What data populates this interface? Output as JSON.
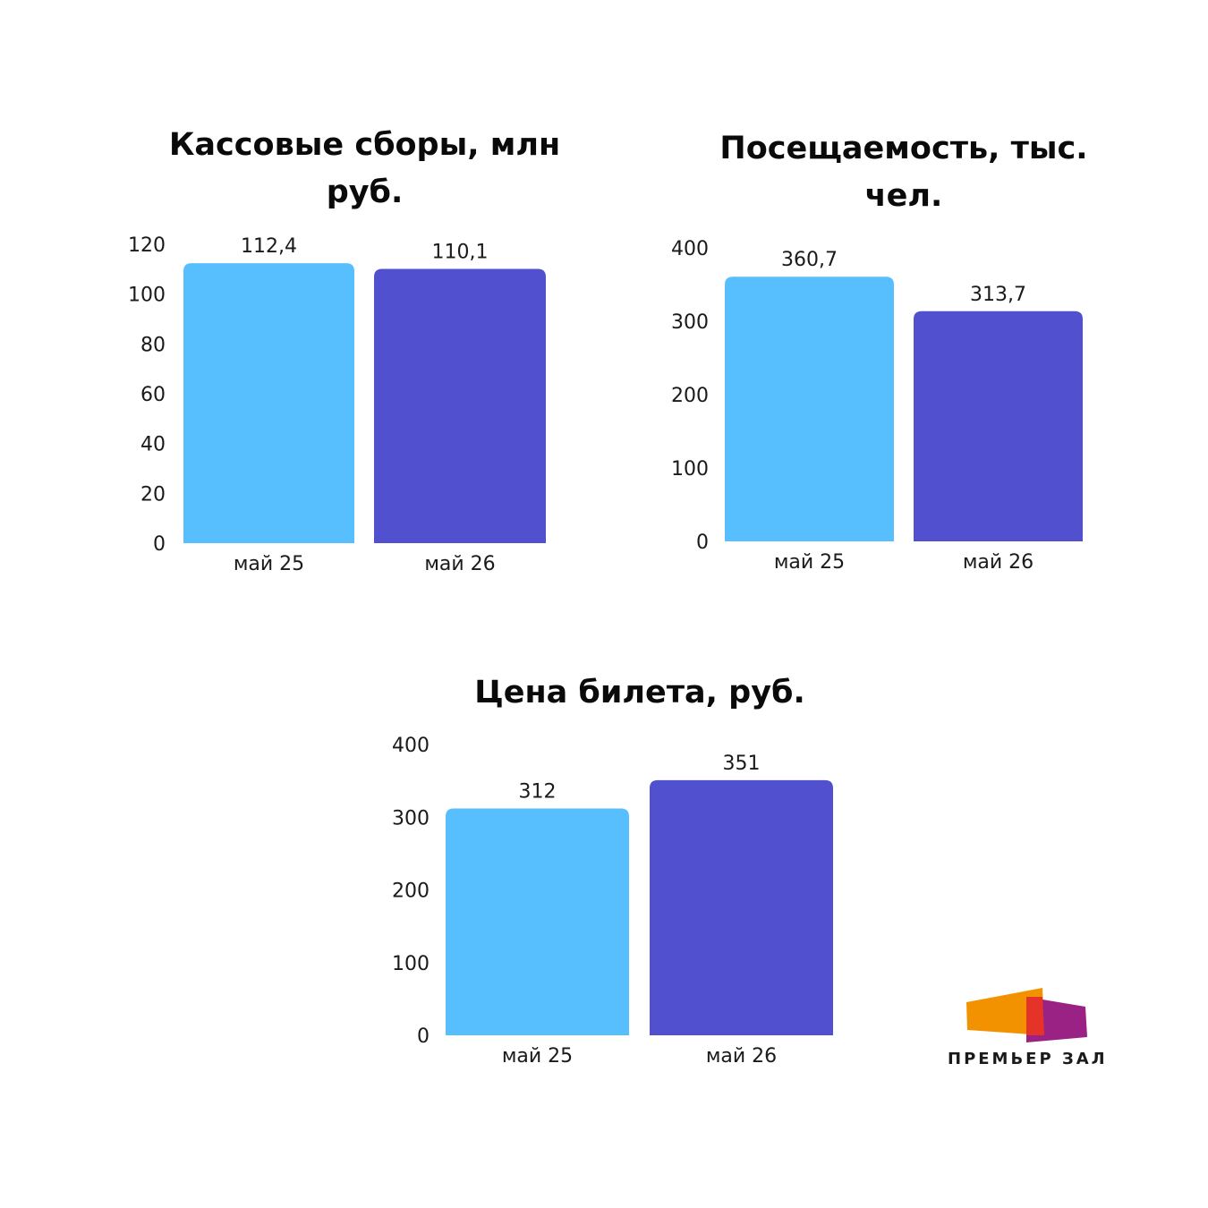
{
  "chart_data": [
    {
      "type": "bar",
      "title": "Кассовые сборы, млн руб.",
      "categories": [
        "май 25",
        "май 26"
      ],
      "values": [
        112.4,
        110.1
      ],
      "value_labels": [
        "112,4",
        "110,1"
      ],
      "yticks": [
        0,
        20,
        40,
        60,
        80,
        100,
        120
      ],
      "ylim": [
        0,
        120
      ],
      "colors": [
        "#58bfff",
        "#5151cf"
      ],
      "grid": false,
      "legend": "none"
    },
    {
      "type": "bar",
      "title": "Посещаемость, тыс. чел.",
      "categories": [
        "май 25",
        "май 26"
      ],
      "values": [
        360.7,
        313.7
      ],
      "value_labels": [
        "360,7",
        "313,7"
      ],
      "yticks": [
        0,
        100,
        200,
        300,
        400
      ],
      "ylim": [
        0,
        400
      ],
      "colors": [
        "#58bfff",
        "#5151cf"
      ],
      "grid": false,
      "legend": "none"
    },
    {
      "type": "bar",
      "title": "Цена билета, руб.",
      "categories": [
        "май 25",
        "май 26"
      ],
      "values": [
        312,
        351
      ],
      "value_labels": [
        "312",
        "351"
      ],
      "yticks": [
        0,
        100,
        200,
        300,
        400
      ],
      "ylim": [
        0,
        400
      ],
      "colors": [
        "#58bfff",
        "#5151cf"
      ],
      "grid": false,
      "legend": "none"
    }
  ],
  "logo": {
    "text": "ПРЕМЬЕР ЗАЛ",
    "colors": [
      "#f39200",
      "#e6332a",
      "#9b2285"
    ]
  }
}
